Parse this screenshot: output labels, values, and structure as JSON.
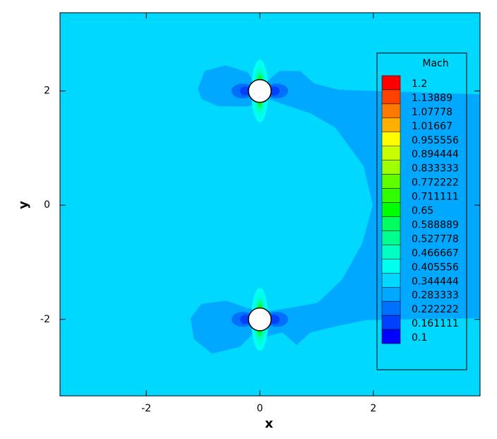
{
  "chart_data": {
    "type": "contour",
    "xlabel": "x",
    "ylabel": "y",
    "xlim": [
      -3.52,
      3.88
    ],
    "ylim": [
      -3.34,
      3.37
    ],
    "xticks": [
      -2,
      0,
      2
    ],
    "yticks": [
      -2,
      0,
      2
    ],
    "legend": {
      "title": "Mach",
      "levels": [
        1.2,
        1.13889,
        1.07778,
        1.01667,
        0.955556,
        0.894444,
        0.833333,
        0.772222,
        0.711111,
        0.65,
        0.588889,
        0.527778,
        0.466667,
        0.405556,
        0.344444,
        0.283333,
        0.222222,
        0.161111,
        0.1
      ],
      "colors": [
        "#ff0000",
        "#ff4000",
        "#ff7800",
        "#ffb000",
        "#ffff00",
        "#c8ff00",
        "#a0ff00",
        "#60ff00",
        "#30ff00",
        "#00ff00",
        "#00ff60",
        "#00ff90",
        "#00ffc0",
        "#00ffee",
        "#00d8ff",
        "#00a8ff",
        "#0070ff",
        "#0040ff",
        "#0000ff"
      ]
    },
    "background_level": 0.344444,
    "regions": [
      {
        "level": 0.283333,
        "points": [
          [
            -1.09,
            2.04
          ],
          [
            -0.97,
            2.35
          ],
          [
            -0.6,
            2.45
          ],
          [
            -0.22,
            2.33
          ],
          [
            -0.07,
            2.13
          ],
          [
            0.09,
            2.13
          ],
          [
            0.34,
            2.35
          ],
          [
            0.71,
            2.35
          ],
          [
            0.96,
            2.13
          ],
          [
            1.39,
            2.02
          ],
          [
            3.88,
            1.94
          ],
          [
            3.88,
            -1.98
          ],
          [
            1.89,
            -2.01
          ],
          [
            1.39,
            -2.11
          ],
          [
            0.89,
            -2.23
          ],
          [
            0.65,
            -2.45
          ],
          [
            0.4,
            -2.23
          ],
          [
            0.15,
            -2.29
          ],
          [
            0.05,
            -2.35
          ],
          [
            -0.1,
            -2.23
          ],
          [
            -0.35,
            -2.48
          ],
          [
            -0.84,
            -2.6
          ],
          [
            -1.16,
            -2.35
          ],
          [
            -1.22,
            -1.98
          ],
          [
            -1.03,
            -1.73
          ],
          [
            -0.6,
            -1.67
          ],
          [
            -0.22,
            -1.8
          ],
          [
            0.15,
            -1.86
          ],
          [
            0.52,
            -1.8
          ],
          [
            1.02,
            -1.71
          ],
          [
            1.45,
            -1.3
          ],
          [
            1.8,
            -0.68
          ],
          [
            1.99,
            0
          ],
          [
            1.83,
            0.68
          ],
          [
            1.33,
            1.36
          ],
          [
            0.89,
            1.61
          ],
          [
            0.52,
            1.73
          ],
          [
            0.15,
            1.86
          ],
          [
            -0.22,
            1.73
          ],
          [
            -0.72,
            1.73
          ],
          [
            -1.03,
            1.86
          ]
        ]
      },
      {
        "level": 0.405556,
        "cx": 0,
        "cy": 2,
        "rx": 0.15,
        "ry": 0.55
      },
      {
        "level": 0.405556,
        "cx": 0,
        "cy": -2,
        "rx": 0.15,
        "ry": 0.55
      },
      {
        "level": 0.222222,
        "cx": -0.3,
        "cy": 2,
        "rx": 0.2,
        "ry": 0.13
      },
      {
        "level": 0.222222,
        "cx": 0.3,
        "cy": 2,
        "rx": 0.2,
        "ry": 0.13
      },
      {
        "level": 0.222222,
        "cx": -0.3,
        "cy": -2,
        "rx": 0.2,
        "ry": 0.13
      },
      {
        "level": 0.222222,
        "cx": 0.3,
        "cy": -2,
        "rx": 0.2,
        "ry": 0.13
      },
      {
        "level": 0.161111,
        "cx": -0.25,
        "cy": 2,
        "rx": 0.1,
        "ry": 0.08
      },
      {
        "level": 0.161111,
        "cx": 0.25,
        "cy": 2,
        "rx": 0.1,
        "ry": 0.08
      },
      {
        "level": 0.161111,
        "cx": -0.25,
        "cy": -2,
        "rx": 0.1,
        "ry": 0.08
      },
      {
        "level": 0.161111,
        "cx": 0.25,
        "cy": -2,
        "rx": 0.1,
        "ry": 0.08
      },
      {
        "level": 0.466667,
        "cx": 0,
        "cy": 2,
        "rx": 0.1,
        "ry": 0.4
      },
      {
        "level": 0.466667,
        "cx": 0,
        "cy": -2,
        "rx": 0.1,
        "ry": 0.4
      },
      {
        "level": 0.527778,
        "cx": 0,
        "cy": 2,
        "rx": 0.07,
        "ry": 0.32
      },
      {
        "level": 0.527778,
        "cx": 0,
        "cy": -2,
        "rx": 0.07,
        "ry": 0.32
      },
      {
        "level": 0.65,
        "cx": 0,
        "cy": 2,
        "rx": 0.05,
        "ry": 0.27
      },
      {
        "level": 0.65,
        "cx": 0,
        "cy": -2,
        "rx": 0.05,
        "ry": 0.27
      }
    ],
    "bodies": [
      {
        "cx": 0,
        "cy": 2,
        "r": 0.2
      },
      {
        "cx": 0,
        "cy": -2,
        "r": 0.2
      }
    ]
  }
}
